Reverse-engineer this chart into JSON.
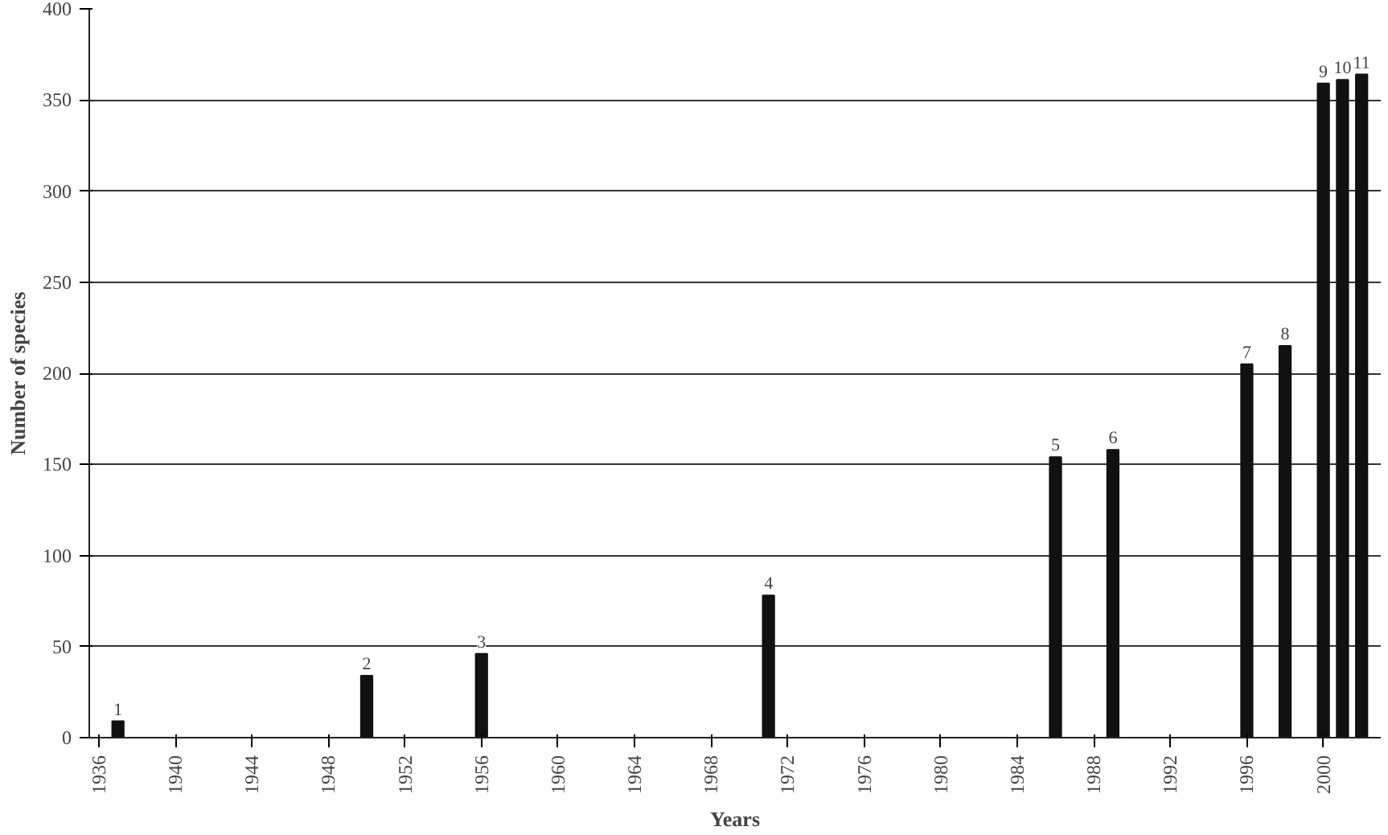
{
  "chart_data": {
    "type": "bar",
    "xlabel": "Years",
    "ylabel": "Number of species",
    "x": [
      1937,
      1950,
      1956,
      1971,
      1986,
      1989,
      1996,
      1998,
      2000,
      2001,
      2002
    ],
    "values": [
      9,
      34,
      46,
      78,
      154,
      158,
      205,
      215,
      359,
      361,
      364
    ],
    "color": "#111111",
    "xlim": [
      1935.5,
      2003
    ],
    "xticks": [
      1936,
      1940,
      1944,
      1948,
      1952,
      1956,
      1960,
      1964,
      1968,
      1972,
      1976,
      1980,
      1984,
      1988,
      1992,
      1996,
      2000
    ],
    "ylim": [
      0,
      400
    ],
    "yticks": [
      0,
      50,
      100,
      150,
      200,
      250,
      300,
      350,
      400
    ],
    "grid": "y",
    "annotations": [
      {
        "text": "1",
        "x": 1937,
        "y": 9
      },
      {
        "text": "2",
        "x": 1950,
        "y": 34
      },
      {
        "text": "3",
        "x": 1956,
        "y": 46
      },
      {
        "text": "4",
        "x": 1971,
        "y": 78
      },
      {
        "text": "5",
        "x": 1986,
        "y": 154
      },
      {
        "text": "6",
        "x": 1989,
        "y": 158
      },
      {
        "text": "7",
        "x": 1996,
        "y": 205
      },
      {
        "text": "8",
        "x": 1998,
        "y": 215
      },
      {
        "text": "9",
        "x": 2000,
        "y": 359
      },
      {
        "text": "10",
        "x": 2001,
        "y": 361
      },
      {
        "text": "11",
        "x": 2002,
        "y": 364
      }
    ]
  }
}
